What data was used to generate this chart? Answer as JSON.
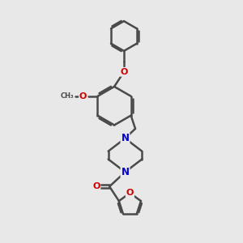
{
  "background_color": "#e8e8e8",
  "bond_color": "#4a4a4a",
  "nitrogen_color": "#0000cc",
  "oxygen_color": "#cc0000",
  "bond_width": 1.8,
  "figure_size": [
    3.0,
    3.0
  ],
  "dpi": 100,
  "xlim": [
    0,
    10
  ],
  "ylim": [
    0,
    10
  ]
}
